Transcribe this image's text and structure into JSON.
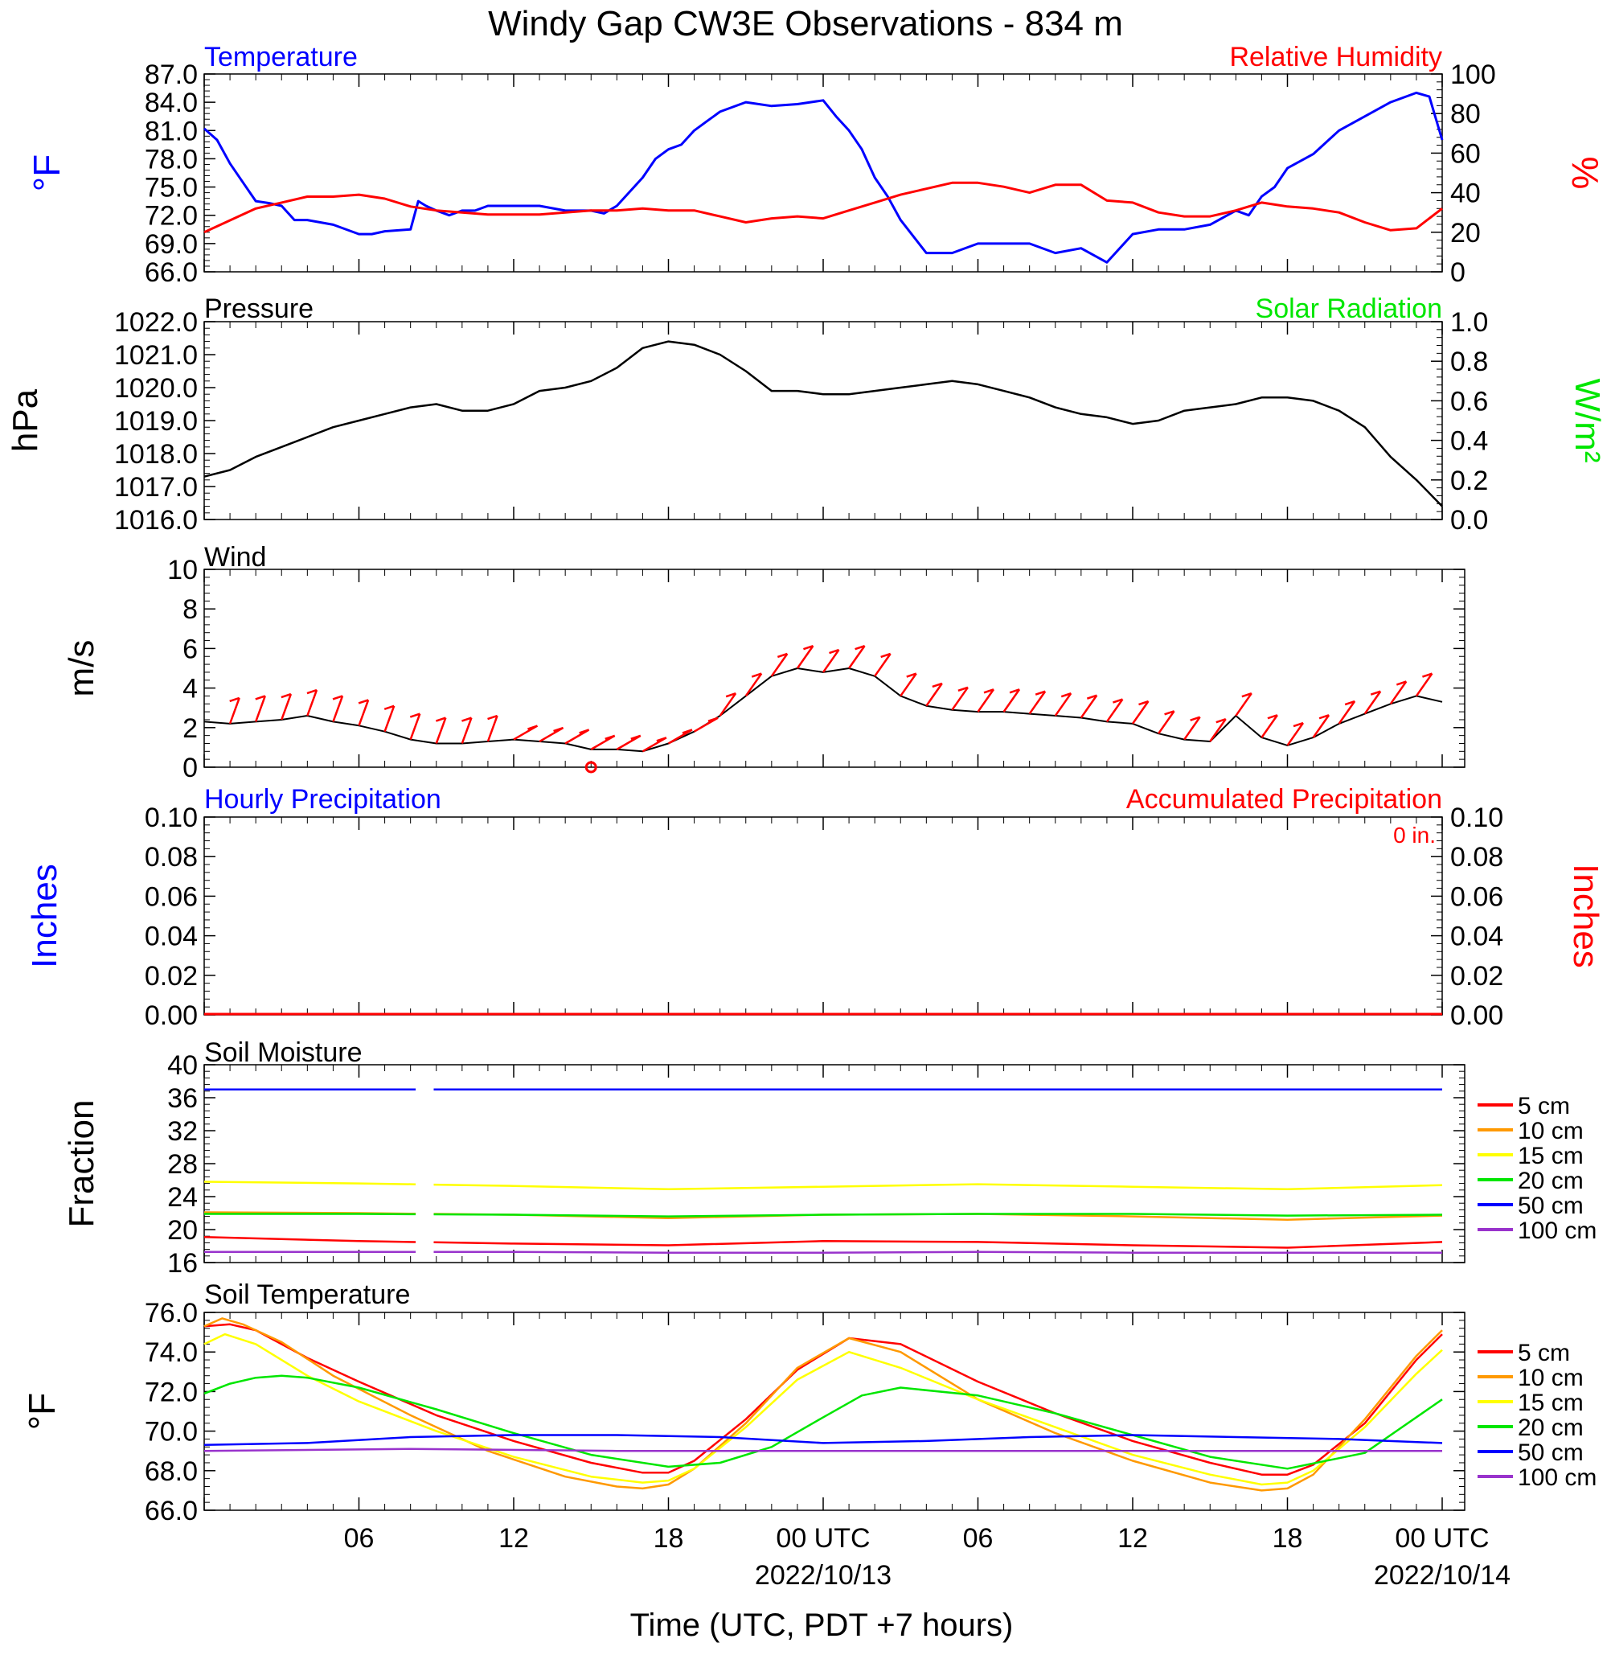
{
  "title": "Windy Gap CW3E Observations - 834 m",
  "x_axis": {
    "label": "Time (UTC, PDT +7 hours)",
    "hours_range": [
      0,
      48
    ],
    "ticks": [
      {
        "h": 6,
        "label": "06",
        "date": ""
      },
      {
        "h": 12,
        "label": "12",
        "date": ""
      },
      {
        "h": 18,
        "label": "18",
        "date": ""
      },
      {
        "h": 24,
        "label": "00 UTC",
        "date": "2022/10/13"
      },
      {
        "h": 30,
        "label": "06",
        "date": ""
      },
      {
        "h": 36,
        "label": "12",
        "date": ""
      },
      {
        "h": 42,
        "label": "18",
        "date": ""
      },
      {
        "h": 48,
        "label": "00 UTC",
        "date": "2022/10/14"
      }
    ]
  },
  "panels": {
    "temp_rh": {
      "left_title": "Temperature",
      "right_title": "Relative Humidity",
      "left_unit": "°F",
      "right_unit": "%",
      "left_ticks": [
        "66.0",
        "69.0",
        "72.0",
        "75.0",
        "78.0",
        "81.0",
        "84.0",
        "87.0"
      ],
      "right_ticks": [
        "0",
        "20",
        "40",
        "60",
        "80",
        "100"
      ]
    },
    "pressure": {
      "left_title": "Pressure",
      "right_title": "Solar Radiation",
      "left_unit": "hPa",
      "right_unit": "W/m²",
      "left_ticks": [
        "1016.0",
        "1017.0",
        "1018.0",
        "1019.0",
        "1020.0",
        "1021.0",
        "1022.0"
      ],
      "right_ticks": [
        "0.0",
        "0.2",
        "0.4",
        "0.6",
        "0.8",
        "1.0"
      ]
    },
    "wind": {
      "left_title": "Wind",
      "left_unit": "m/s",
      "left_ticks": [
        "0",
        "2",
        "4",
        "6",
        "8",
        "10"
      ]
    },
    "precip": {
      "left_title": "Hourly Precipitation",
      "right_title": "Accumulated Precipitation",
      "left_unit": "Inches",
      "right_unit": "Inches",
      "total_label": "0 in.",
      "left_ticks": [
        "0.00",
        "0.02",
        "0.04",
        "0.06",
        "0.08",
        "0.10"
      ],
      "right_ticks": [
        "0.00",
        "0.02",
        "0.04",
        "0.06",
        "0.08",
        "0.10"
      ]
    },
    "soil_moisture": {
      "left_title": "Soil Moisture",
      "left_unit": "Fraction",
      "left_ticks": [
        "16",
        "20",
        "24",
        "28",
        "32",
        "36",
        "40"
      ]
    },
    "soil_temp": {
      "left_title": "Soil Temperature",
      "left_unit": "°F",
      "left_ticks": [
        "66.0",
        "68.0",
        "70.0",
        "72.0",
        "74.0",
        "76.0"
      ]
    }
  },
  "legend": [
    {
      "label": "5 cm",
      "color": "#ff0000"
    },
    {
      "label": "10 cm",
      "color": "#ff9900"
    },
    {
      "label": "15 cm",
      "color": "#ffff00"
    },
    {
      "label": "20 cm",
      "color": "#00e600"
    },
    {
      "label": "50 cm",
      "color": "#0000ff"
    },
    {
      "label": "100 cm",
      "color": "#9933cc"
    }
  ],
  "chart_data": [
    {
      "type": "line",
      "name": "temperature_relative_humidity",
      "x_unit": "hours since 2022-10-12 00 UTC (range 0-48)",
      "ylim_left": [
        66,
        87
      ],
      "ylim_right": [
        0,
        100
      ],
      "series": [
        {
          "name": "Temperature",
          "axis": "left",
          "color": "#0000ff",
          "x": [
            0,
            0.5,
            1,
            1.5,
            2,
            2.5,
            3,
            3.5,
            4,
            5,
            6,
            6.5,
            7,
            8,
            8.3,
            8.6,
            9,
            9.5,
            10,
            10.5,
            11,
            12,
            13,
            14,
            15,
            15.5,
            16,
            16.5,
            17,
            17.5,
            18,
            18.5,
            19,
            19.5,
            20,
            21,
            22,
            23,
            24,
            24.5,
            25,
            25.5,
            26,
            26.5,
            27,
            28,
            29,
            30,
            31,
            32,
            33,
            34,
            35,
            36,
            37,
            38,
            39,
            40,
            40.5,
            41,
            41.5,
            42,
            43,
            44,
            45,
            46,
            47,
            47.5,
            48
          ],
          "y": [
            81.2,
            80,
            77.5,
            75.5,
            73.5,
            73.3,
            73,
            71.5,
            71.5,
            71,
            70,
            70,
            70.3,
            70.5,
            73.5,
            73,
            72.5,
            72,
            72.5,
            72.5,
            73,
            73,
            73,
            72.5,
            72.5,
            72.2,
            73,
            74.5,
            76,
            78,
            79,
            79.5,
            81,
            82,
            83,
            84,
            83.6,
            83.8,
            84.2,
            82.5,
            81,
            79,
            76,
            74,
            71.5,
            68,
            68,
            69,
            69,
            69,
            68,
            68.5,
            67,
            70,
            70.5,
            70.5,
            71,
            72.5,
            72,
            74,
            75,
            77,
            78.5,
            81,
            82.5,
            84,
            85,
            84.6,
            80
          ]
        },
        {
          "name": "Relative Humidity",
          "axis": "right",
          "color": "#ff0000",
          "x": [
            0,
            1,
            2,
            3,
            4,
            5,
            6,
            7,
            8,
            9,
            10,
            11,
            12,
            13,
            14,
            15,
            16,
            17,
            18,
            19,
            20,
            21,
            22,
            23,
            24,
            25,
            26,
            27,
            28,
            29,
            30,
            31,
            32,
            33,
            34,
            35,
            36,
            37,
            38,
            39,
            40,
            41,
            42,
            43,
            44,
            45,
            46,
            47,
            48
          ],
          "y": [
            20,
            26,
            32,
            35,
            38,
            38,
            39,
            37,
            33,
            31,
            30,
            29,
            29,
            29,
            30,
            31,
            31,
            32,
            31,
            31,
            28,
            25,
            27,
            28,
            27,
            31,
            35,
            39,
            42,
            45,
            45,
            43,
            40,
            44,
            44,
            36,
            35,
            30,
            28,
            28,
            31,
            35,
            33,
            32,
            30,
            25,
            21,
            22,
            32
          ]
        }
      ]
    },
    {
      "type": "line",
      "name": "pressure_solar_radiation",
      "ylim_left": [
        1016,
        1022
      ],
      "ylim_right": [
        0,
        1
      ],
      "series": [
        {
          "name": "Pressure",
          "axis": "left",
          "color": "#000000",
          "x": [
            0,
            1,
            2,
            3,
            4,
            5,
            6,
            7,
            8,
            9,
            10,
            11,
            12,
            13,
            14,
            15,
            16,
            17,
            18,
            19,
            20,
            21,
            22,
            23,
            24,
            25,
            26,
            27,
            28,
            29,
            30,
            31,
            32,
            33,
            34,
            35,
            36,
            37,
            38,
            39,
            40,
            41,
            42,
            43,
            44,
            45,
            46,
            47,
            48
          ],
          "y": [
            1017.3,
            1017.5,
            1017.9,
            1018.2,
            1018.5,
            1018.8,
            1019.0,
            1019.2,
            1019.4,
            1019.5,
            1019.3,
            1019.3,
            1019.5,
            1019.9,
            1020.0,
            1020.2,
            1020.6,
            1021.2,
            1021.4,
            1021.3,
            1021.0,
            1020.5,
            1019.9,
            1019.9,
            1019.8,
            1019.8,
            1019.9,
            1020.0,
            1020.1,
            1020.2,
            1020.1,
            1019.9,
            1019.7,
            1019.4,
            1019.2,
            1019.1,
            1018.9,
            1019.0,
            1019.3,
            1019.4,
            1019.5,
            1019.7,
            1019.7,
            1019.6,
            1019.3,
            1018.8,
            1017.9,
            1017.2,
            1016.4
          ]
        }
      ]
    },
    {
      "type": "line",
      "name": "wind",
      "ylim": [
        0,
        10
      ],
      "series": [
        {
          "name": "Wind Speed",
          "color": "#000000",
          "x": [
            0,
            1,
            2,
            3,
            4,
            5,
            6,
            7,
            8,
            9,
            10,
            11,
            12,
            13,
            14,
            15,
            16,
            17,
            18,
            19,
            20,
            21,
            22,
            23,
            24,
            25,
            26,
            27,
            28,
            29,
            30,
            31,
            32,
            33,
            34,
            35,
            36,
            37,
            38,
            39,
            40,
            41,
            42,
            43,
            44,
            45,
            46,
            47,
            48
          ],
          "y": [
            2.3,
            2.2,
            2.3,
            2.4,
            2.6,
            2.3,
            2.1,
            1.8,
            1.4,
            1.2,
            1.2,
            1.3,
            1.4,
            1.3,
            1.2,
            0.9,
            0.9,
            0.8,
            1.2,
            1.8,
            2.6,
            3.6,
            4.6,
            5.0,
            4.8,
            5.0,
            4.6,
            3.6,
            3.1,
            2.9,
            2.8,
            2.8,
            2.7,
            2.6,
            2.5,
            2.3,
            2.2,
            1.7,
            1.4,
            1.3,
            2.6,
            1.5,
            1.1,
            1.5,
            2.2,
            2.7,
            3.2,
            3.6,
            3.3
          ]
        }
      ],
      "barbs": {
        "color": "#ff0000"
      },
      "calm_marker": {
        "x": 15,
        "y": 0
      }
    },
    {
      "type": "bar",
      "name": "precipitation",
      "ylim": [
        0,
        0.1
      ],
      "series": [
        {
          "name": "Hourly Precipitation",
          "color": "#0000ff",
          "values": []
        },
        {
          "name": "Accumulated Precipitation",
          "color": "#ff0000",
          "values": [
            0
          ]
        }
      ]
    },
    {
      "type": "line",
      "name": "soil_moisture",
      "ylim": [
        16,
        40
      ],
      "gap_hours": [
        8.2,
        8.9
      ],
      "series": [
        {
          "name": "5 cm",
          "color": "#ff0000",
          "x": [
            0,
            6,
            12,
            18,
            24,
            30,
            36,
            42,
            48
          ],
          "y": [
            19.1,
            18.6,
            18.3,
            18.1,
            18.6,
            18.5,
            18.1,
            17.8,
            18.5
          ]
        },
        {
          "name": "10 cm",
          "color": "#ff9900",
          "x": [
            0,
            6,
            12,
            18,
            24,
            30,
            36,
            42,
            48
          ],
          "y": [
            22.1,
            22.0,
            21.8,
            21.4,
            21.8,
            21.9,
            21.6,
            21.2,
            21.7
          ]
        },
        {
          "name": "15 cm",
          "color": "#ffff00",
          "x": [
            0,
            6,
            12,
            18,
            24,
            30,
            36,
            42,
            48
          ],
          "y": [
            25.8,
            25.6,
            25.3,
            24.9,
            25.2,
            25.5,
            25.2,
            24.9,
            25.4
          ]
        },
        {
          "name": "20 cm",
          "color": "#00e600",
          "x": [
            0,
            6,
            12,
            18,
            24,
            30,
            36,
            42,
            48
          ],
          "y": [
            21.9,
            21.9,
            21.8,
            21.6,
            21.8,
            21.9,
            21.9,
            21.7,
            21.8
          ]
        },
        {
          "name": "50 cm",
          "color": "#0000ff",
          "x": [
            0,
            6,
            12,
            18,
            24,
            30,
            36,
            42,
            48
          ],
          "y": [
            37.0,
            37.0,
            37.0,
            37.0,
            37.0,
            37.0,
            37.0,
            37.0,
            37.0
          ]
        },
        {
          "name": "100 cm",
          "color": "#9933cc",
          "x": [
            0,
            6,
            12,
            18,
            24,
            30,
            36,
            42,
            48
          ],
          "y": [
            17.3,
            17.3,
            17.3,
            17.2,
            17.2,
            17.3,
            17.2,
            17.2,
            17.2
          ]
        }
      ]
    },
    {
      "type": "line",
      "name": "soil_temperature",
      "ylim": [
        66,
        76
      ],
      "series": [
        {
          "name": "5 cm",
          "color": "#ff0000",
          "x": [
            0,
            1,
            2,
            4,
            6,
            9,
            12,
            15,
            17,
            18,
            19,
            21,
            23,
            25,
            27,
            30,
            33,
            36,
            39,
            41,
            42,
            43,
            45,
            47,
            48
          ],
          "y": [
            75.3,
            75.4,
            75.1,
            73.7,
            72.5,
            70.8,
            69.5,
            68.4,
            67.9,
            67.9,
            68.5,
            70.6,
            73.1,
            74.7,
            74.4,
            72.5,
            70.9,
            69.5,
            68.4,
            67.8,
            67.8,
            68.3,
            70.4,
            73.6,
            74.9
          ]
        },
        {
          "name": "10 cm",
          "color": "#ff9900",
          "x": [
            0,
            0.7,
            1.5,
            3,
            5,
            8,
            11,
            14,
            16,
            17,
            18,
            19,
            21,
            23,
            25,
            27,
            30,
            33,
            36,
            39,
            41,
            42,
            43,
            45,
            47,
            48
          ],
          "y": [
            75.3,
            75.7,
            75.4,
            74.5,
            72.8,
            70.8,
            69.0,
            67.7,
            67.2,
            67.1,
            67.3,
            68.1,
            70.4,
            73.2,
            74.7,
            74.0,
            71.6,
            69.9,
            68.5,
            67.4,
            67.0,
            67.1,
            67.8,
            70.6,
            73.8,
            75.1
          ]
        },
        {
          "name": "15 cm",
          "color": "#ffff00",
          "x": [
            0,
            0.8,
            2,
            4,
            6,
            9,
            12,
            15,
            17,
            18,
            19,
            21,
            23,
            25,
            27,
            30,
            33,
            36,
            39,
            41,
            42,
            43,
            45,
            47,
            48
          ],
          "y": [
            74.4,
            74.9,
            74.4,
            72.8,
            71.5,
            70.0,
            68.7,
            67.7,
            67.4,
            67.5,
            68.1,
            70.2,
            72.6,
            74.0,
            73.2,
            71.6,
            70.2,
            68.8,
            67.8,
            67.3,
            67.4,
            68.0,
            70.2,
            72.9,
            74.1
          ]
        },
        {
          "name": "20 cm",
          "color": "#00e600",
          "x": [
            0,
            1,
            2,
            3,
            4,
            6,
            9,
            12,
            15,
            18,
            20,
            22,
            24,
            25.5,
            27,
            30,
            33,
            36,
            39,
            42,
            45,
            48
          ],
          "y": [
            71.9,
            72.4,
            72.7,
            72.8,
            72.7,
            72.2,
            71.1,
            69.9,
            68.8,
            68.2,
            68.4,
            69.2,
            70.7,
            71.8,
            72.2,
            71.8,
            70.9,
            69.8,
            68.7,
            68.1,
            68.9,
            71.6
          ]
        },
        {
          "name": "50 cm",
          "color": "#0000ff",
          "x": [
            0,
            4,
            8,
            12,
            16,
            20,
            24,
            28,
            32,
            36,
            40,
            44,
            48
          ],
          "y": [
            69.3,
            69.4,
            69.7,
            69.8,
            69.8,
            69.7,
            69.4,
            69.5,
            69.7,
            69.8,
            69.7,
            69.6,
            69.4
          ]
        },
        {
          "name": "100 cm",
          "color": "#9933cc",
          "x": [
            0,
            8,
            16,
            24,
            32,
            40,
            48
          ],
          "y": [
            69.0,
            69.1,
            69.0,
            69.0,
            69.0,
            69.0,
            69.0
          ]
        }
      ]
    }
  ]
}
